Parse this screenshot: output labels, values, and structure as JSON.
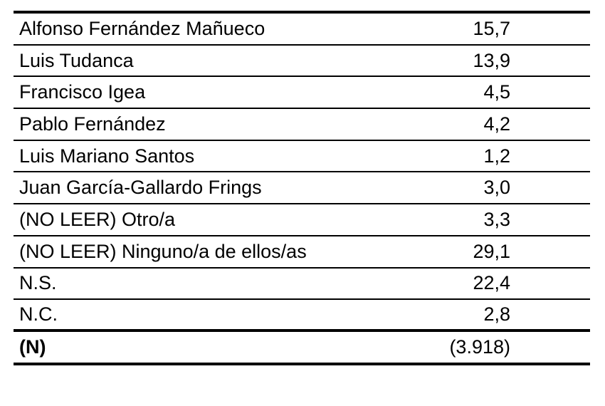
{
  "rows": [
    {
      "label": "Alfonso Fernández Mañueco",
      "value": "15,7"
    },
    {
      "label": "Luis Tudanca",
      "value": "13,9"
    },
    {
      "label": "Francisco Igea",
      "value": "4,5"
    },
    {
      "label": "Pablo Fernández",
      "value": "4,2"
    },
    {
      "label": "Luis Mariano Santos",
      "value": "1,2"
    },
    {
      "label": "Juan García-Gallardo Frings",
      "value": "3,0"
    },
    {
      "label": "(NO LEER) Otro/a",
      "value": "3,3"
    },
    {
      "label": "(NO LEER) Ninguno/a de ellos/as",
      "value": "29,1"
    },
    {
      "label": "N.S.",
      "value": "22,4"
    },
    {
      "label": "N.C.",
      "value": "2,8"
    }
  ],
  "total": {
    "label": "(N)",
    "value": "(3.918)"
  }
}
